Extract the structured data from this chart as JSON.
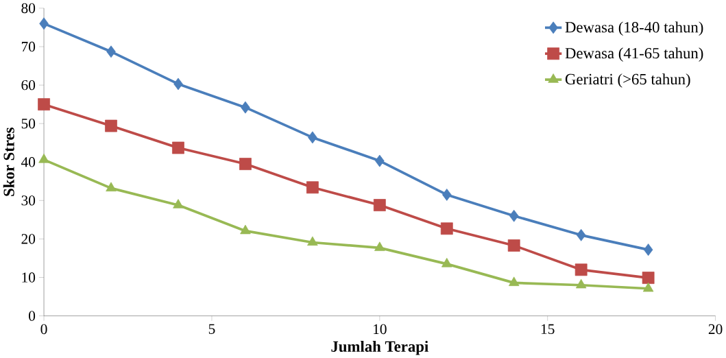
{
  "chart_data": {
    "type": "line",
    "xlabel": "Jumlah Terapi",
    "ylabel": "Skor Stres",
    "x": [
      0,
      2,
      4,
      6,
      8,
      10,
      12,
      14,
      16,
      18
    ],
    "series": [
      {
        "name": "Dewasa (18-40 tahun)",
        "color": "#4a7ebb",
        "marker": "diamond",
        "values": [
          76,
          68.7,
          60.3,
          54.2,
          46.4,
          40.3,
          31.5,
          26.0,
          21.0,
          17.2
        ]
      },
      {
        "name": "Dewasa (41-65 tahun)",
        "color": "#be4b48",
        "marker": "square",
        "values": [
          55.0,
          49.4,
          43.7,
          39.5,
          33.4,
          28.8,
          22.7,
          18.3,
          12.0,
          9.9
        ]
      },
      {
        "name": "Geriatri (>65 tahun)",
        "color": "#98b954",
        "marker": "triangle",
        "values": [
          40.6,
          33.2,
          28.8,
          22.1,
          19.1,
          17.7,
          13.5,
          8.6,
          8.0,
          7.1
        ]
      }
    ],
    "xlim": [
      0,
      20
    ],
    "xticks": [
      0,
      5,
      10,
      15,
      20
    ],
    "ylim": [
      0,
      80
    ],
    "yticks": [
      0,
      10,
      20,
      30,
      40,
      50,
      60,
      70,
      80
    ],
    "grid": false,
    "legend": "top right",
    "line_style": "solid"
  }
}
